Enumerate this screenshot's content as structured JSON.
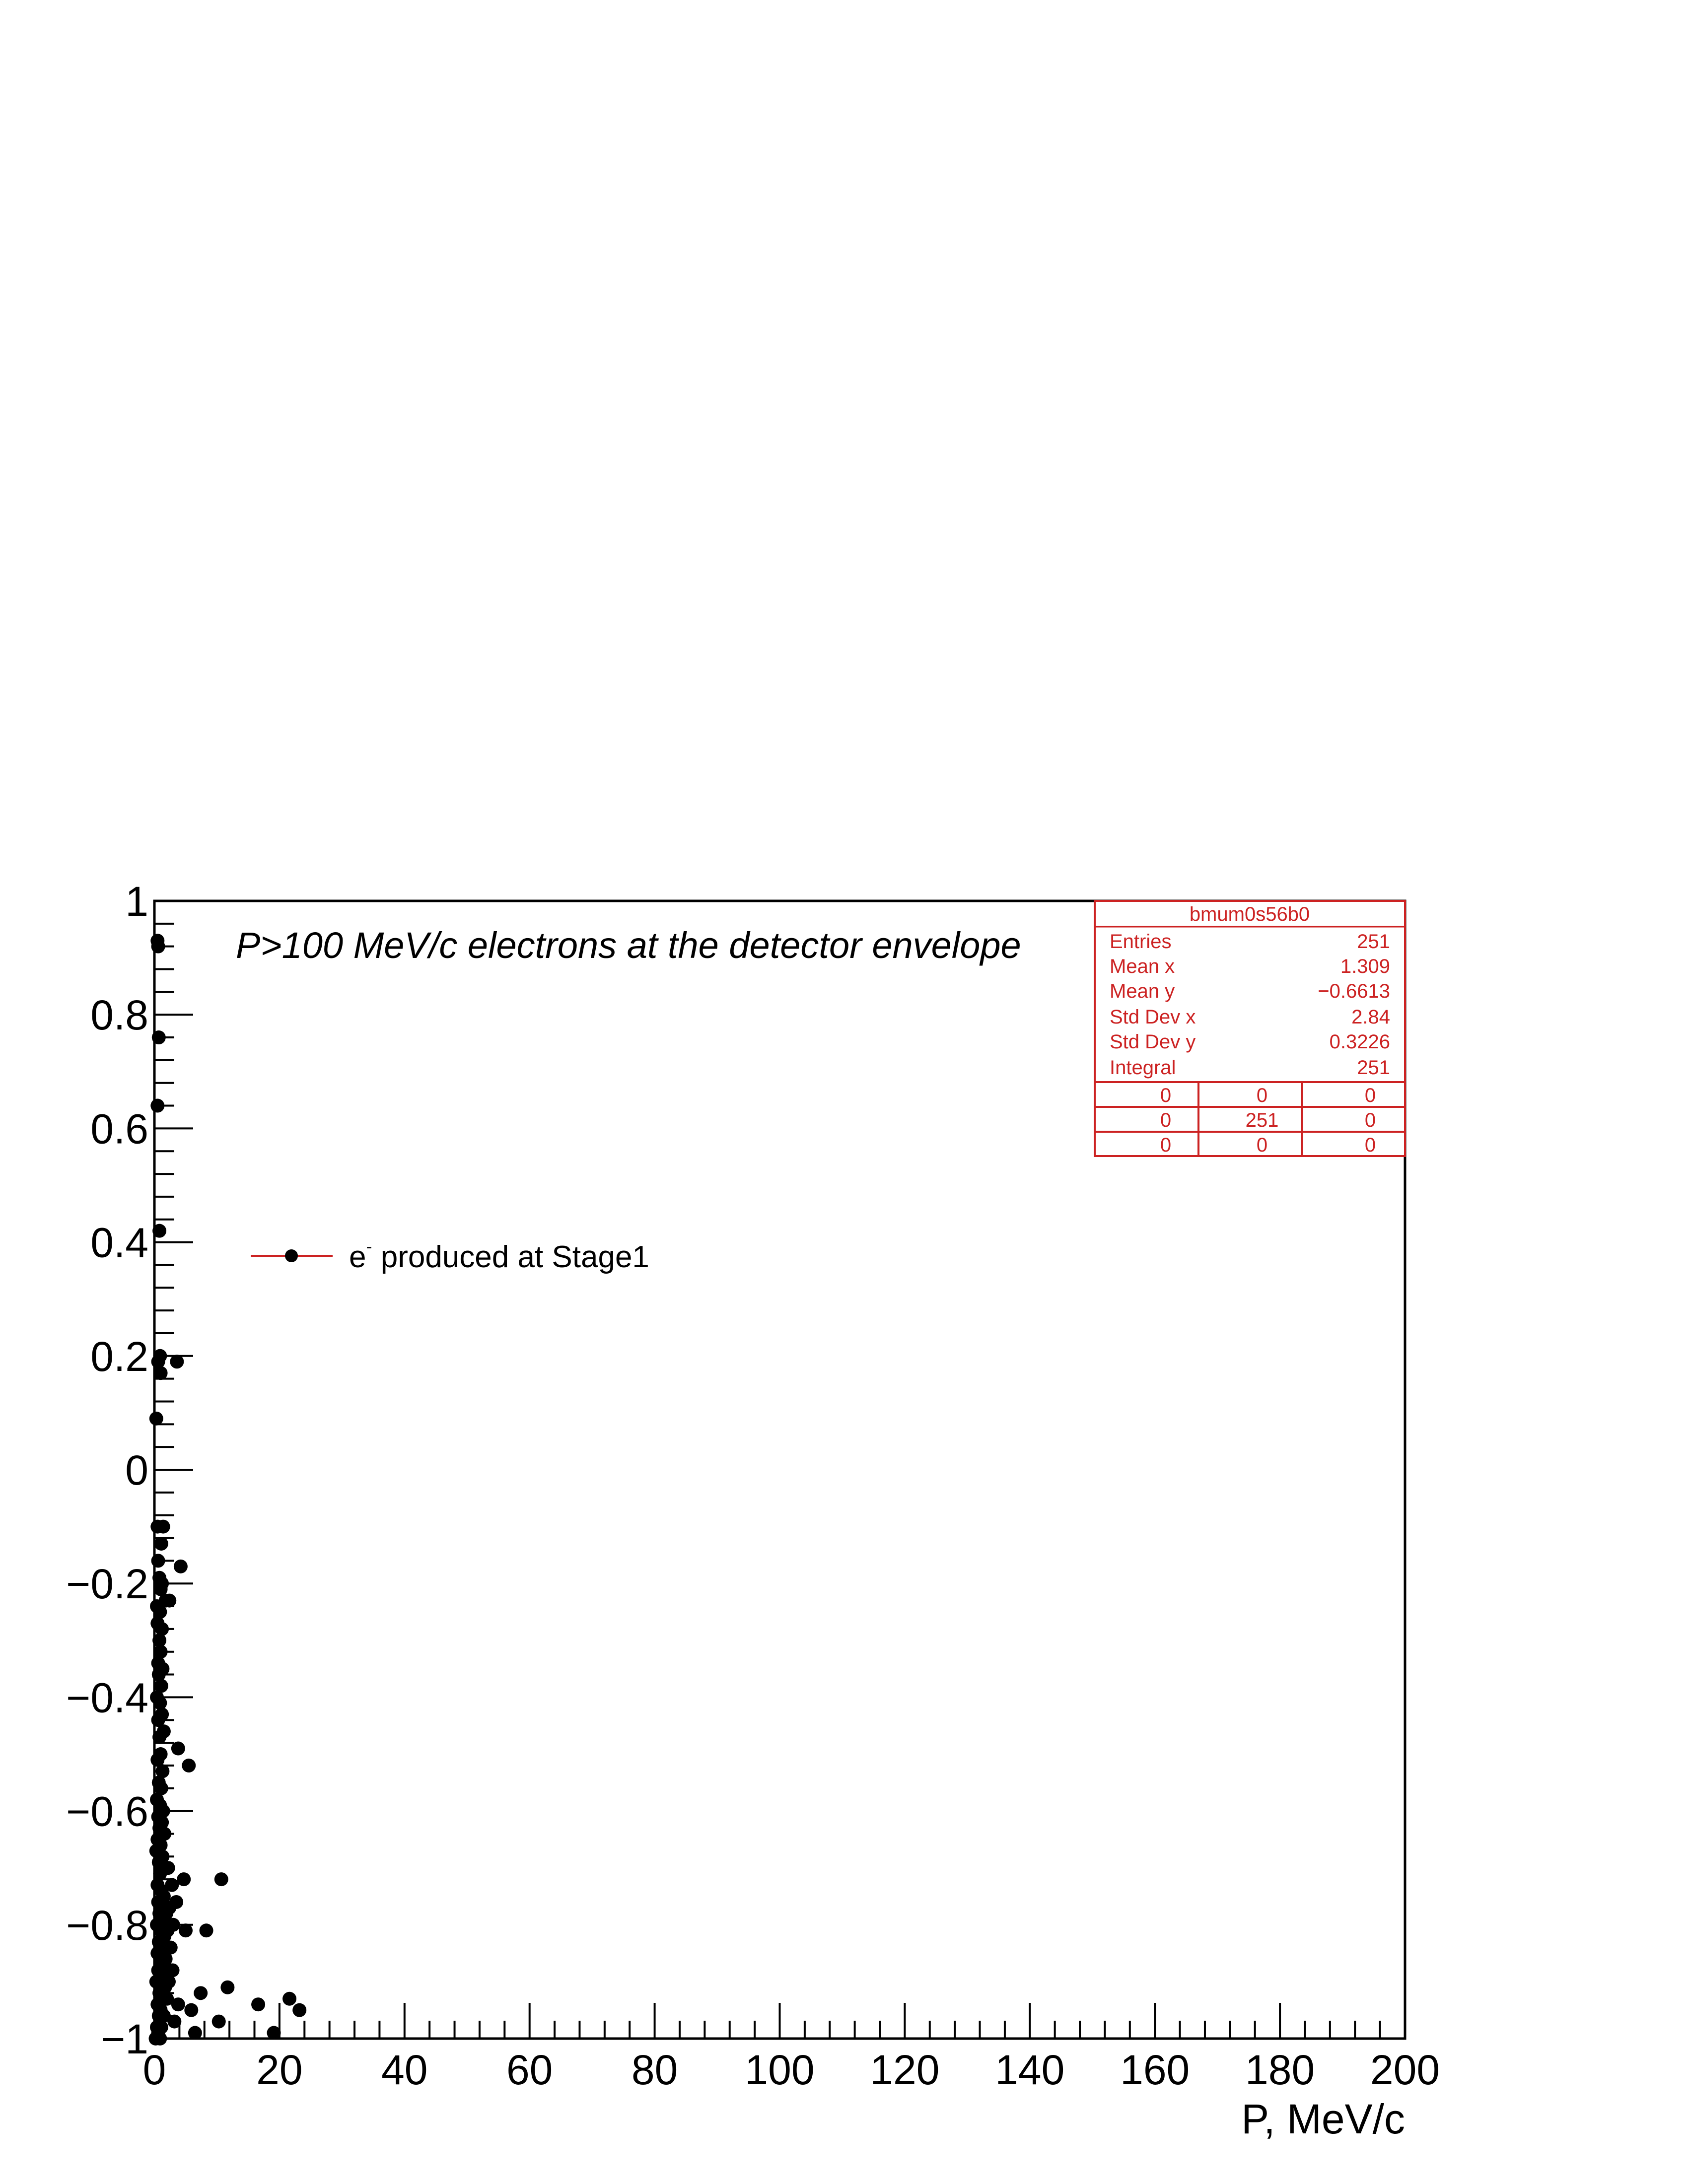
{
  "chart_data": {
    "type": "scatter",
    "title": "P>100 MeV/c electrons at the detector envelope",
    "xlabel": "P, MeV/c",
    "ylabel": "",
    "xlim": [
      0,
      200
    ],
    "ylim": [
      -1,
      1
    ],
    "x_ticks": [
      "0",
      "20",
      "40",
      "60",
      "80",
      "100",
      "120",
      "140",
      "160",
      "180",
      "200"
    ],
    "y_ticks": [
      "−1",
      "−0.8",
      "−0.6",
      "−0.4",
      "−0.2",
      "0",
      "0.2",
      "0.4",
      "0.6",
      "0.8",
      "1"
    ],
    "legend": {
      "placement": "upper-left",
      "entries": [
        {
          "label": "e",
          "superscript": "-",
          "label_suffix": " produced at Stage1",
          "marker_color": "#000000",
          "line_color": "#cc2222"
        }
      ]
    },
    "series": [
      {
        "name": "e- produced at Stage1",
        "color": "#000000",
        "points": [
          [
            0.5,
            0.93
          ],
          [
            0.6,
            0.92
          ],
          [
            0.7,
            0.76
          ],
          [
            0.5,
            0.64
          ],
          [
            0.8,
            0.42
          ],
          [
            0.9,
            0.2
          ],
          [
            1.0,
            0.17
          ],
          [
            0.6,
            0.19
          ],
          [
            3.6,
            0.19
          ],
          [
            0.3,
            0.09
          ],
          [
            0.5,
            -0.1
          ],
          [
            1.4,
            -0.1
          ],
          [
            1.1,
            -0.13
          ],
          [
            4.2,
            -0.17
          ],
          [
            0.6,
            -0.16
          ],
          [
            0.8,
            -0.19
          ],
          [
            1.0,
            -0.21
          ],
          [
            1.2,
            -0.2
          ],
          [
            2.4,
            -0.23
          ],
          [
            1.8,
            -0.23
          ],
          [
            0.4,
            -0.24
          ],
          [
            0.9,
            -0.25
          ],
          [
            0.5,
            -0.27
          ],
          [
            1.2,
            -0.28
          ],
          [
            0.8,
            -0.3
          ],
          [
            1.0,
            -0.32
          ],
          [
            0.6,
            -0.34
          ],
          [
            1.3,
            -0.35
          ],
          [
            0.7,
            -0.36
          ],
          [
            1.1,
            -0.38
          ],
          [
            0.4,
            -0.4
          ],
          [
            0.9,
            -0.41
          ],
          [
            1.2,
            -0.43
          ],
          [
            0.6,
            -0.44
          ],
          [
            1.5,
            -0.46
          ],
          [
            0.8,
            -0.47
          ],
          [
            3.8,
            -0.49
          ],
          [
            1.0,
            -0.5
          ],
          [
            0.5,
            -0.51
          ],
          [
            5.5,
            -0.52
          ],
          [
            1.3,
            -0.53
          ],
          [
            0.7,
            -0.55
          ],
          [
            1.1,
            -0.56
          ],
          [
            0.4,
            -0.58
          ],
          [
            0.9,
            -0.59
          ],
          [
            1.4,
            -0.6
          ],
          [
            0.6,
            -0.61
          ],
          [
            1.2,
            -0.62
          ],
          [
            0.8,
            -0.63
          ],
          [
            1.6,
            -0.64
          ],
          [
            0.5,
            -0.65
          ],
          [
            1.0,
            -0.66
          ],
          [
            0.3,
            -0.67
          ],
          [
            1.3,
            -0.68
          ],
          [
            0.7,
            -0.69
          ],
          [
            1.8,
            -0.7
          ],
          [
            2.2,
            -0.7
          ],
          [
            0.9,
            -0.71
          ],
          [
            10.7,
            -0.72
          ],
          [
            4.7,
            -0.72
          ],
          [
            2.8,
            -0.73
          ],
          [
            0.5,
            -0.73
          ],
          [
            1.1,
            -0.74
          ],
          [
            1.5,
            -0.75
          ],
          [
            3.5,
            -0.76
          ],
          [
            0.6,
            -0.76
          ],
          [
            2.4,
            -0.77
          ],
          [
            1.9,
            -0.78
          ],
          [
            0.8,
            -0.78
          ],
          [
            1.3,
            -0.79
          ],
          [
            3.0,
            -0.8
          ],
          [
            0.4,
            -0.8
          ],
          [
            1.0,
            -0.81
          ],
          [
            2.1,
            -0.81
          ],
          [
            5.0,
            -0.81
          ],
          [
            8.3,
            -0.81
          ],
          [
            1.6,
            -0.82
          ],
          [
            0.7,
            -0.83
          ],
          [
            1.2,
            -0.84
          ],
          [
            2.6,
            -0.84
          ],
          [
            0.5,
            -0.85
          ],
          [
            1.8,
            -0.86
          ],
          [
            0.9,
            -0.86
          ],
          [
            1.4,
            -0.87
          ],
          [
            2.9,
            -0.88
          ],
          [
            0.6,
            -0.88
          ],
          [
            1.1,
            -0.89
          ],
          [
            2.3,
            -0.9
          ],
          [
            0.3,
            -0.9
          ],
          [
            1.7,
            -0.91
          ],
          [
            11.7,
            -0.91
          ],
          [
            7.4,
            -0.92
          ],
          [
            0.8,
            -0.92
          ],
          [
            1.3,
            -0.93
          ],
          [
            2.0,
            -0.93
          ],
          [
            21.6,
            -0.93
          ],
          [
            0.5,
            -0.94
          ],
          [
            3.8,
            -0.94
          ],
          [
            16.6,
            -0.94
          ],
          [
            23.2,
            -0.95
          ],
          [
            1.0,
            -0.95
          ],
          [
            5.9,
            -0.95
          ],
          [
            0.7,
            -0.96
          ],
          [
            1.5,
            -0.96
          ],
          [
            3.2,
            -0.97
          ],
          [
            10.3,
            -0.97
          ],
          [
            0.4,
            -0.98
          ],
          [
            1.1,
            -0.98
          ],
          [
            6.5,
            -0.99
          ],
          [
            19.1,
            -0.99
          ],
          [
            0.6,
            -0.99
          ],
          [
            0.9,
            -1.0
          ],
          [
            0.2,
            -1.0
          ]
        ]
      }
    ],
    "stats_box": {
      "title": "bmum0s56b0",
      "rows": [
        {
          "label": "Entries",
          "value": "251"
        },
        {
          "label": "Mean x",
          "value": "1.309"
        },
        {
          "label": "Mean y",
          "value": "−0.6613"
        },
        {
          "label": "Std Dev x",
          "value": "2.84"
        },
        {
          "label": "Std Dev y",
          "value": "0.3226"
        },
        {
          "label": "Integral",
          "value": "251"
        }
      ],
      "grid": [
        [
          "0",
          "0",
          "0"
        ],
        [
          "0",
          "251",
          "0"
        ],
        [
          "0",
          "0",
          "0"
        ]
      ],
      "color": "#cc2222"
    },
    "grid": false
  }
}
